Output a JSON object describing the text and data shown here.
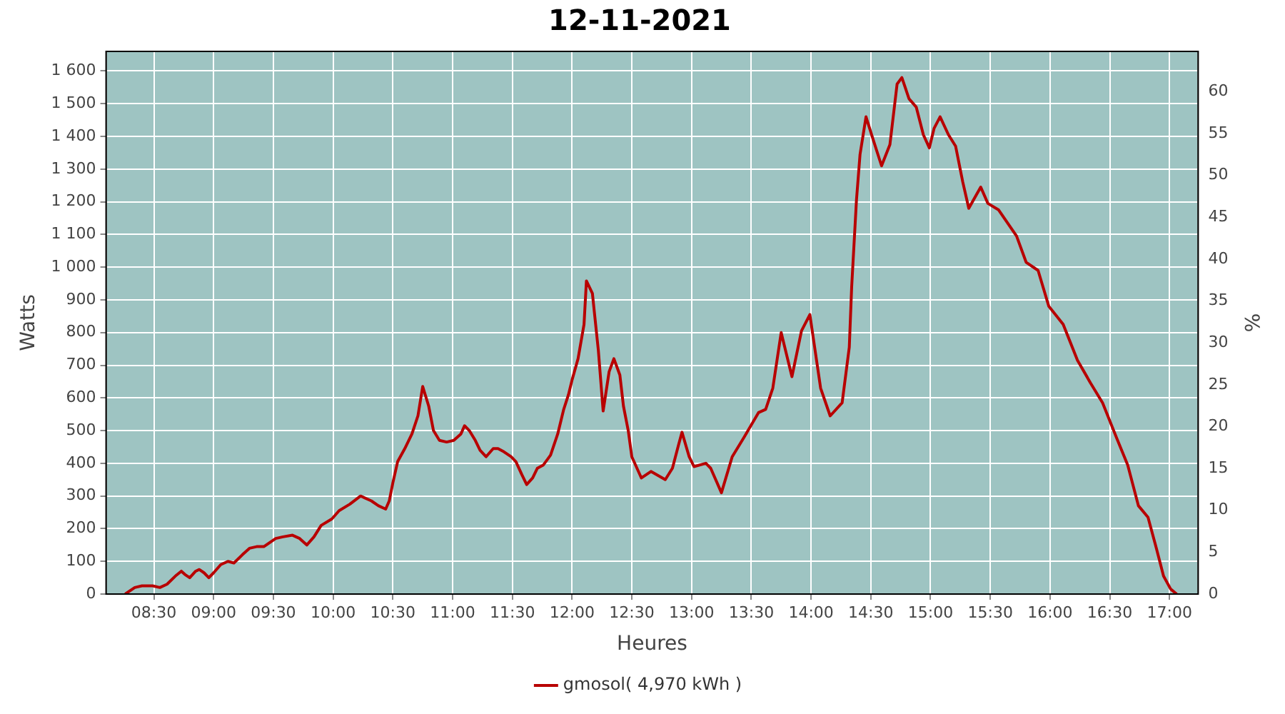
{
  "chart_data": {
    "type": "line",
    "title": "12-11-2021",
    "xlabel": "Heures",
    "ylabel": "Watts",
    "y2label": "%",
    "xlim": [
      8.1,
      17.24
    ],
    "xticks": [
      {
        "value": 8.5,
        "label": "08:30"
      },
      {
        "value": 9,
        "label": "09:00"
      },
      {
        "value": 9.5,
        "label": "09:30"
      },
      {
        "value": 10,
        "label": "10:00"
      },
      {
        "value": 10.5,
        "label": "10:30"
      },
      {
        "value": 11,
        "label": "11:00"
      },
      {
        "value": 11.5,
        "label": "11:30"
      },
      {
        "value": 12,
        "label": "12:00"
      },
      {
        "value": 12.5,
        "label": "12:30"
      },
      {
        "value": 13,
        "label": "13:00"
      },
      {
        "value": 13.5,
        "label": "13:30"
      },
      {
        "value": 14,
        "label": "14:00"
      },
      {
        "value": 14.5,
        "label": "14:30"
      },
      {
        "value": 15,
        "label": "15:00"
      },
      {
        "value": 15.5,
        "label": "15:30"
      },
      {
        "value": 16,
        "label": "16:00"
      },
      {
        "value": 16.5,
        "label": "16:30"
      },
      {
        "value": 17,
        "label": "17:00"
      }
    ],
    "ylim": [
      0,
      1660
    ],
    "yticks": [
      0,
      100,
      200,
      300,
      400,
      500,
      600,
      700,
      800,
      900,
      {
        "value": 1000,
        "label": "1 000"
      },
      {
        "value": 1100,
        "label": "1 100"
      },
      {
        "value": 1200,
        "label": "1 200"
      },
      {
        "value": 1300,
        "label": "1 300"
      },
      {
        "value": 1400,
        "label": "1 400"
      },
      {
        "value": 1500,
        "label": "1 500"
      },
      {
        "value": 1600,
        "label": "1 600"
      }
    ],
    "y2lim": [
      0,
      64.8
    ],
    "y2ticks": [
      0,
      5,
      10,
      15,
      20,
      25,
      30,
      35,
      40,
      45,
      50,
      55,
      60
    ],
    "grid": true,
    "legend": "bottom",
    "marker": "none",
    "line_style": "solid",
    "series": [
      {
        "name": "gmosol( 4,970 kWh )",
        "color": "#b80000",
        "x": [
          8.26,
          8.34,
          8.4,
          8.49,
          8.55,
          8.61,
          8.68,
          8.73,
          8.76,
          8.8,
          8.85,
          8.88,
          8.92,
          8.96,
          9.0,
          9.06,
          9.12,
          9.17,
          9.24,
          9.3,
          9.36,
          9.42,
          9.52,
          9.58,
          9.66,
          9.72,
          9.78,
          9.84,
          9.9,
          9.99,
          10.05,
          10.14,
          10.23,
          10.32,
          10.38,
          10.44,
          10.47,
          10.5,
          10.54,
          10.6,
          10.66,
          10.71,
          10.75,
          10.8,
          10.84,
          10.89,
          10.95,
          11.01,
          11.07,
          11.1,
          11.14,
          11.19,
          11.23,
          11.28,
          11.34,
          11.38,
          11.43,
          11.49,
          11.53,
          11.58,
          11.62,
          11.67,
          11.71,
          11.76,
          11.82,
          11.88,
          11.93,
          11.97,
          12.0,
          12.05,
          12.1,
          12.12,
          12.17,
          12.22,
          12.26,
          12.31,
          12.35,
          12.4,
          12.43,
          12.47,
          12.5,
          12.58,
          12.66,
          12.78,
          12.84,
          12.89,
          12.92,
          12.98,
          13.02,
          13.12,
          13.16,
          13.25,
          13.34,
          13.44,
          13.56,
          13.62,
          13.68,
          13.75,
          13.84,
          13.92,
          13.99,
          14.08,
          14.16,
          14.26,
          14.32,
          14.34,
          14.38,
          14.41,
          14.46,
          14.52,
          14.59,
          14.66,
          14.72,
          14.76,
          14.82,
          14.88,
          14.94,
          14.99,
          15.03,
          15.08,
          15.15,
          15.21,
          15.27,
          15.32,
          15.42,
          15.48,
          15.57,
          15.72,
          15.8,
          15.9,
          15.99,
          16.11,
          16.23,
          16.34,
          16.44,
          16.56,
          16.65,
          16.74,
          16.82,
          16.89,
          16.95,
          17.01,
          17.06
        ],
        "values": [
          0,
          20,
          25,
          25,
          20,
          30,
          55,
          70,
          60,
          50,
          70,
          75,
          65,
          50,
          65,
          90,
          100,
          95,
          120,
          140,
          145,
          145,
          170,
          175,
          180,
          170,
          150,
          175,
          210,
          230,
          255,
          275,
          300,
          285,
          270,
          260,
          285,
          340,
          405,
          445,
          490,
          545,
          635,
          575,
          500,
          470,
          465,
          470,
          490,
          515,
          500,
          470,
          440,
          420,
          445,
          445,
          435,
          420,
          405,
          365,
          335,
          355,
          385,
          395,
          425,
          490,
          565,
          610,
          655,
          720,
          825,
          958,
          920,
          745,
          560,
          680,
          720,
          670,
          575,
          500,
          420,
          355,
          375,
          350,
          385,
          455,
          495,
          420,
          390,
          400,
          385,
          310,
          420,
          480,
          555,
          565,
          630,
          800,
          665,
          805,
          855,
          630,
          545,
          585,
          755,
          940,
          1205,
          1345,
          1460,
          1390,
          1310,
          1375,
          1560,
          1580,
          1515,
          1490,
          1405,
          1365,
          1425,
          1460,
          1405,
          1370,
          1260,
          1180,
          1245,
          1195,
          1175,
          1095,
          1015,
          990,
          880,
          825,
          715,
          645,
          585,
          475,
          395,
          270,
          235,
          140,
          55,
          15,
          0
        ]
      }
    ]
  }
}
